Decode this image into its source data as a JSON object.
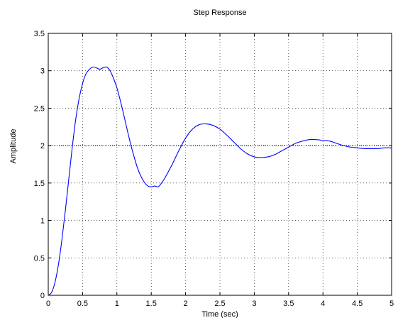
{
  "chart_data": {
    "type": "line",
    "title": "Step Response",
    "xlabel": "Time (sec)",
    "ylabel": "Amplitude",
    "xlim": [
      0,
      5
    ],
    "ylim": [
      0,
      3.5
    ],
    "xticks": [
      0,
      0.5,
      1,
      1.5,
      2,
      2.5,
      3,
      3.5,
      4,
      4.5,
      5
    ],
    "xtick_labels": [
      "0",
      "0.5",
      "1",
      "1.5",
      "2",
      "2.5",
      "3",
      "3.5",
      "4",
      "4.5",
      "5"
    ],
    "yticks": [
      0,
      0.5,
      1,
      1.5,
      2,
      2.5,
      3,
      3.5
    ],
    "ytick_labels": [
      "0",
      "0.5",
      "1",
      "1.5",
      "2",
      "2.5",
      "3",
      "3.5"
    ],
    "grid": true,
    "series": [
      {
        "color": "#0000ff",
        "x": [
          0,
          0.05,
          0.1,
          0.15,
          0.2,
          0.25,
          0.3,
          0.35,
          0.4,
          0.45,
          0.5,
          0.55,
          0.6,
          0.65,
          0.7,
          0.75,
          0.8,
          0.85,
          0.9,
          0.95,
          1.0,
          1.05,
          1.1,
          1.15,
          1.2,
          1.25,
          1.3,
          1.35,
          1.4,
          1.45,
          1.5,
          1.55,
          1.6,
          1.65,
          1.7,
          1.8,
          1.9,
          2.0,
          2.1,
          2.2,
          2.3,
          2.4,
          2.5,
          2.6,
          2.7,
          2.8,
          2.9,
          3.0,
          3.1,
          3.2,
          3.3,
          3.4,
          3.5,
          3.6,
          3.7,
          3.8,
          3.9,
          4.0,
          4.1,
          4.2,
          4.3,
          4.4,
          4.5,
          4.6,
          4.7,
          4.8,
          4.9,
          5.0
        ],
        "y": [
          0,
          0.04,
          0.18,
          0.42,
          0.75,
          1.14,
          1.56,
          1.98,
          2.35,
          2.63,
          2.83,
          2.96,
          3.02,
          3.05,
          3.04,
          3.02,
          3.04,
          3.05,
          3.0,
          2.9,
          2.77,
          2.6,
          2.41,
          2.21,
          2.02,
          1.85,
          1.7,
          1.59,
          1.51,
          1.46,
          1.45,
          1.46,
          1.45,
          1.5,
          1.57,
          1.74,
          1.93,
          2.1,
          2.22,
          2.28,
          2.29,
          2.27,
          2.22,
          2.14,
          2.05,
          1.96,
          1.89,
          1.85,
          1.84,
          1.85,
          1.88,
          1.93,
          1.98,
          2.03,
          2.06,
          2.08,
          2.08,
          2.07,
          2.06,
          2.03,
          2.0,
          1.98,
          1.97,
          1.96,
          1.96,
          1.96,
          1.97,
          1.97
        ]
      }
    ]
  }
}
